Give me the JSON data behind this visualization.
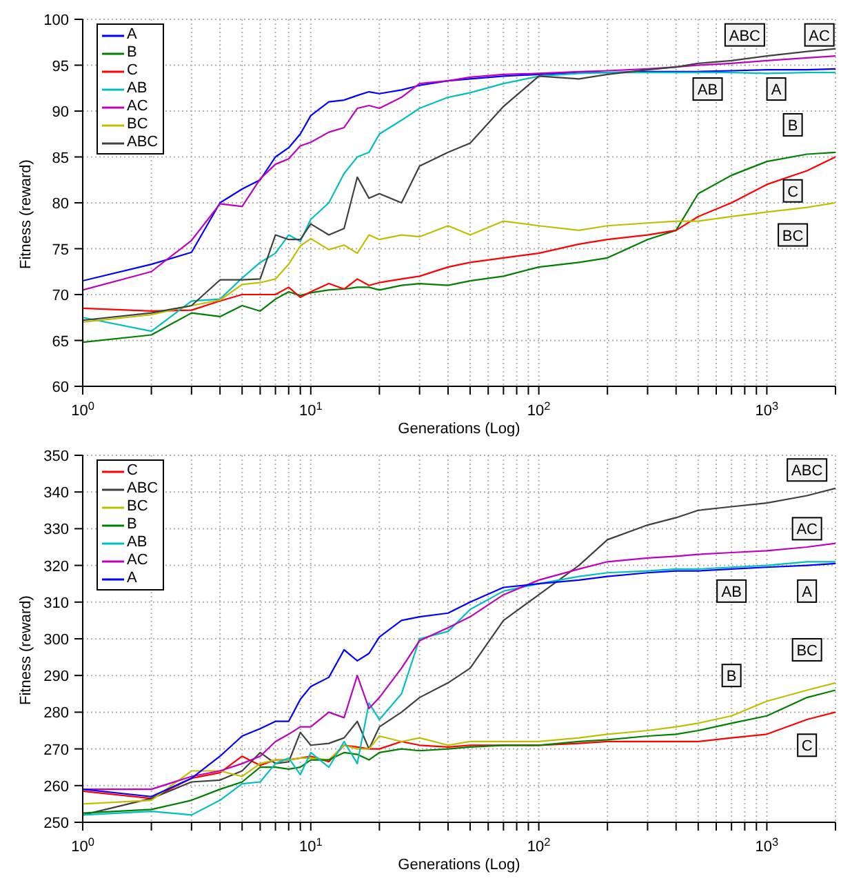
{
  "chart_data": [
    {
      "type": "line",
      "xlabel": "Generations (Log)",
      "ylabel": "Fitness (reward)",
      "log": "x",
      "grid": true,
      "legend": "top left",
      "x": [
        1,
        2,
        3,
        4,
        5,
        6,
        7,
        8,
        9,
        10,
        12,
        14,
        16,
        18,
        20,
        25,
        30,
        40,
        50,
        70,
        100,
        150,
        200,
        300,
        400,
        500,
        700,
        1000,
        1500,
        2000
      ],
      "xlim": [
        1,
        2000
      ],
      "xticks": [
        {
          "value": 1,
          "label": "10$^{0}$"
        },
        {
          "value": 2,
          "label": null
        },
        {
          "value": 3,
          "label": null
        },
        {
          "value": 4,
          "label": null
        },
        {
          "value": 5,
          "label": null
        },
        {
          "value": 6,
          "label": null
        },
        {
          "value": 7,
          "label": null
        },
        {
          "value": 8,
          "label": null
        },
        {
          "value": 9,
          "label": null
        },
        {
          "value": 10,
          "label": "10$^{1}$"
        },
        {
          "value": 20,
          "label": null
        },
        {
          "value": 30,
          "label": null
        },
        {
          "value": 40,
          "label": null
        },
        {
          "value": 50,
          "label": null
        },
        {
          "value": 60,
          "label": null
        },
        {
          "value": 70,
          "label": null
        },
        {
          "value": 80,
          "label": null
        },
        {
          "value": 90,
          "label": null
        },
        {
          "value": 100,
          "label": "10$^{2}$"
        },
        {
          "value": 200,
          "label": null
        },
        {
          "value": 300,
          "label": null
        },
        {
          "value": 400,
          "label": null
        },
        {
          "value": 500,
          "label": null
        },
        {
          "value": 600,
          "label": null
        },
        {
          "value": 700,
          "label": null
        },
        {
          "value": 800,
          "label": null
        },
        {
          "value": 900,
          "label": null
        },
        {
          "value": 1000,
          "label": "10$^{3}$"
        },
        {
          "value": 2000,
          "label": null
        }
      ],
      "ylim": [
        60,
        100
      ],
      "yticks": [
        60,
        65,
        70,
        75,
        80,
        85,
        90,
        95,
        100
      ],
      "series": [
        {
          "name": "A",
          "color": "#0000ff",
          "values": [
            71.5,
            73.3,
            74.6,
            80,
            81.5,
            82.5,
            85,
            86,
            87.5,
            89.5,
            91,
            91.2,
            91.7,
            92.1,
            91.9,
            92.3,
            92.8,
            93.3,
            93.5,
            93.8,
            94,
            94.2,
            94.2,
            94.3,
            94.3,
            94.3,
            94.4,
            94.5,
            94.5,
            94.6
          ]
        },
        {
          "name": "B",
          "color": "#008000",
          "values": [
            64.8,
            65.6,
            68,
            67.6,
            68.8,
            68.2,
            69.5,
            70.3,
            69.9,
            70.2,
            70.5,
            70.6,
            70.8,
            70.8,
            70.5,
            71,
            71.2,
            71,
            71.5,
            72,
            73,
            73.5,
            74,
            76,
            77,
            81,
            83,
            84.5,
            85.3,
            85.5
          ]
        },
        {
          "name": "C",
          "color": "#ff0000",
          "values": [
            68.5,
            68.2,
            68.3,
            69.3,
            70,
            70,
            70,
            70.8,
            69.7,
            70.3,
            71.2,
            70.6,
            71.7,
            71,
            71.3,
            71.7,
            72,
            73,
            73.5,
            74,
            74.5,
            75.5,
            76,
            76.5,
            77,
            78.5,
            80,
            82,
            83.5,
            85
          ]
        },
        {
          "name": "AB",
          "color": "#00bfbf",
          "values": [
            67.5,
            66,
            69.3,
            69.5,
            71.8,
            73.5,
            74.5,
            76.5,
            75.8,
            78.2,
            80,
            83.2,
            85,
            85.5,
            87.5,
            89,
            90.3,
            91.5,
            92,
            93,
            93.8,
            94.1,
            94.2,
            94.2,
            94.2,
            94.2,
            94.2,
            94.1,
            94.2,
            94.2
          ]
        },
        {
          "name": "AC",
          "color": "#bf00bf",
          "values": [
            70.5,
            72.5,
            75.9,
            79.9,
            79.6,
            82.6,
            84.2,
            84.8,
            86.2,
            86.6,
            87.7,
            88.2,
            90.3,
            90.6,
            90.3,
            91.5,
            93,
            93.3,
            93.7,
            94,
            94.1,
            94.3,
            94.4,
            94.6,
            94.8,
            95,
            95.2,
            95.5,
            95.8,
            96
          ]
        },
        {
          "name": "BC",
          "color": "#bfbf00",
          "values": [
            67,
            67.8,
            68.8,
            69.4,
            71.1,
            71.3,
            71.7,
            73.3,
            75.3,
            76.1,
            74.9,
            75.4,
            74.5,
            76.5,
            76,
            76.5,
            76.3,
            77.5,
            76.5,
            78,
            77.5,
            77,
            77.5,
            77.8,
            78,
            78,
            78.5,
            79,
            79.5,
            80
          ]
        },
        {
          "name": "ABC",
          "color": "#404040",
          "values": [
            67.2,
            68,
            68.8,
            71.6,
            71.6,
            71.7,
            76.5,
            76,
            76,
            77.7,
            76.5,
            77.2,
            82.8,
            80.5,
            81,
            80,
            84,
            85.5,
            86.5,
            90.5,
            93.8,
            93.5,
            94,
            94.5,
            94.8,
            95.2,
            95.5,
            96,
            96.5,
            96.8
          ]
        }
      ],
      "annotations": [
        {
          "text": "ABC",
          "x": 800,
          "y": 98.3
        },
        {
          "text": "AB",
          "x": 550,
          "y": 92.4
        },
        {
          "text": "A",
          "x": 1100,
          "y": 92.4
        },
        {
          "text": "AC",
          "x": 1700,
          "y": 98.3
        },
        {
          "text": "B",
          "x": 1300,
          "y": 88.5
        },
        {
          "text": "C",
          "x": 1300,
          "y": 81.3
        },
        {
          "text": "BC",
          "x": 1300,
          "y": 76.5
        }
      ]
    },
    {
      "type": "line",
      "xlabel": "Generations (Log)",
      "ylabel": "Fitness (reward)",
      "log": "x",
      "grid": true,
      "legend": "top left",
      "x": [
        1,
        2,
        3,
        4,
        5,
        6,
        7,
        8,
        9,
        10,
        12,
        14,
        16,
        18,
        20,
        25,
        30,
        40,
        50,
        70,
        100,
        150,
        200,
        300,
        400,
        500,
        700,
        1000,
        1500,
        2000
      ],
      "xlim": [
        1,
        2000
      ],
      "xticks": [
        {
          "value": 1,
          "label": "10$^{0}$"
        },
        {
          "value": 2,
          "label": null
        },
        {
          "value": 3,
          "label": null
        },
        {
          "value": 4,
          "label": null
        },
        {
          "value": 5,
          "label": null
        },
        {
          "value": 6,
          "label": null
        },
        {
          "value": 7,
          "label": null
        },
        {
          "value": 8,
          "label": null
        },
        {
          "value": 9,
          "label": null
        },
        {
          "value": 10,
          "label": "10$^{1}$"
        },
        {
          "value": 20,
          "label": null
        },
        {
          "value": 30,
          "label": null
        },
        {
          "value": 40,
          "label": null
        },
        {
          "value": 50,
          "label": null
        },
        {
          "value": 60,
          "label": null
        },
        {
          "value": 70,
          "label": null
        },
        {
          "value": 80,
          "label": null
        },
        {
          "value": 90,
          "label": null
        },
        {
          "value": 100,
          "label": "10$^{2}$"
        },
        {
          "value": 200,
          "label": null
        },
        {
          "value": 300,
          "label": null
        },
        {
          "value": 400,
          "label": null
        },
        {
          "value": 500,
          "label": null
        },
        {
          "value": 600,
          "label": null
        },
        {
          "value": 700,
          "label": null
        },
        {
          "value": 800,
          "label": null
        },
        {
          "value": 900,
          "label": null
        },
        {
          "value": 1000,
          "label": "10$^{3}$"
        },
        {
          "value": 2000,
          "label": null
        }
      ],
      "ylim": [
        250,
        350
      ],
      "yticks": [
        250,
        260,
        270,
        280,
        290,
        300,
        310,
        320,
        330,
        340,
        350
      ],
      "series": [
        {
          "name": "C",
          "color": "#ff0000",
          "values": [
            258.5,
            256.5,
            262,
            263.5,
            268,
            265.5,
            267,
            267,
            267.5,
            268,
            266.5,
            271,
            270.5,
            270,
            270,
            272,
            271,
            270.5,
            271,
            271,
            271,
            271.5,
            272,
            272,
            272,
            272,
            273,
            274,
            278,
            280
          ]
        },
        {
          "name": "ABC",
          "color": "#404040",
          "values": [
            252,
            256.5,
            261,
            261.5,
            264,
            269,
            266,
            266.5,
            274.5,
            271,
            271.5,
            273,
            277.5,
            270,
            276,
            280,
            284,
            288,
            292,
            305,
            312,
            320,
            327,
            331,
            333,
            335,
            336,
            337,
            339,
            341
          ]
        },
        {
          "name": "BC",
          "color": "#bfbf00",
          "values": [
            255,
            256,
            264,
            264,
            262.5,
            266,
            267,
            267,
            267.5,
            267.5,
            267,
            271,
            270,
            270,
            273.5,
            272,
            273,
            271,
            272,
            272,
            272,
            273,
            274,
            275,
            276,
            277,
            279,
            283,
            286,
            288
          ]
        },
        {
          "name": "B",
          "color": "#008000",
          "values": [
            252.5,
            253.5,
            256,
            259,
            261,
            265,
            265,
            264.5,
            265,
            267,
            267,
            269,
            268.5,
            267,
            269,
            270,
            269.5,
            270,
            270.5,
            271,
            271,
            272,
            272.5,
            273.5,
            274,
            275,
            277,
            279,
            284,
            286
          ]
        },
        {
          "name": "AB",
          "color": "#00bfbf",
          "values": [
            252,
            253,
            252,
            256,
            260.5,
            261,
            266,
            267.5,
            263,
            269,
            265,
            272,
            266,
            282.5,
            278,
            285,
            300,
            302,
            308,
            313,
            315,
            317,
            318,
            318.5,
            319,
            319,
            319.5,
            320,
            321,
            321
          ]
        },
        {
          "name": "AC",
          "color": "#bf00bf",
          "values": [
            259,
            259,
            262.5,
            264,
            266,
            268,
            272,
            274,
            276,
            276,
            280,
            278.5,
            290,
            281,
            284,
            292,
            299.5,
            303,
            306,
            312,
            316,
            319,
            321,
            322,
            322.5,
            323,
            323.5,
            324,
            325,
            326
          ]
        },
        {
          "name": "A",
          "color": "#0000ff",
          "values": [
            259,
            257,
            262,
            268,
            273.5,
            275.5,
            277.5,
            277.5,
            283.5,
            287,
            289.5,
            297,
            294,
            296,
            300.5,
            305,
            306,
            307,
            310,
            314,
            315,
            316,
            317,
            318,
            318.5,
            318.5,
            319,
            319.5,
            320,
            320.5
          ]
        }
      ],
      "annotations": [
        {
          "text": "ABC",
          "x": 1500,
          "y": 346
        },
        {
          "text": "AC",
          "x": 1500,
          "y": 330
        },
        {
          "text": "AB",
          "x": 700,
          "y": 313
        },
        {
          "text": "A",
          "x": 1500,
          "y": 313
        },
        {
          "text": "BC",
          "x": 1500,
          "y": 297
        },
        {
          "text": "B",
          "x": 700,
          "y": 290
        },
        {
          "text": "C",
          "x": 1500,
          "y": 271
        }
      ]
    }
  ]
}
